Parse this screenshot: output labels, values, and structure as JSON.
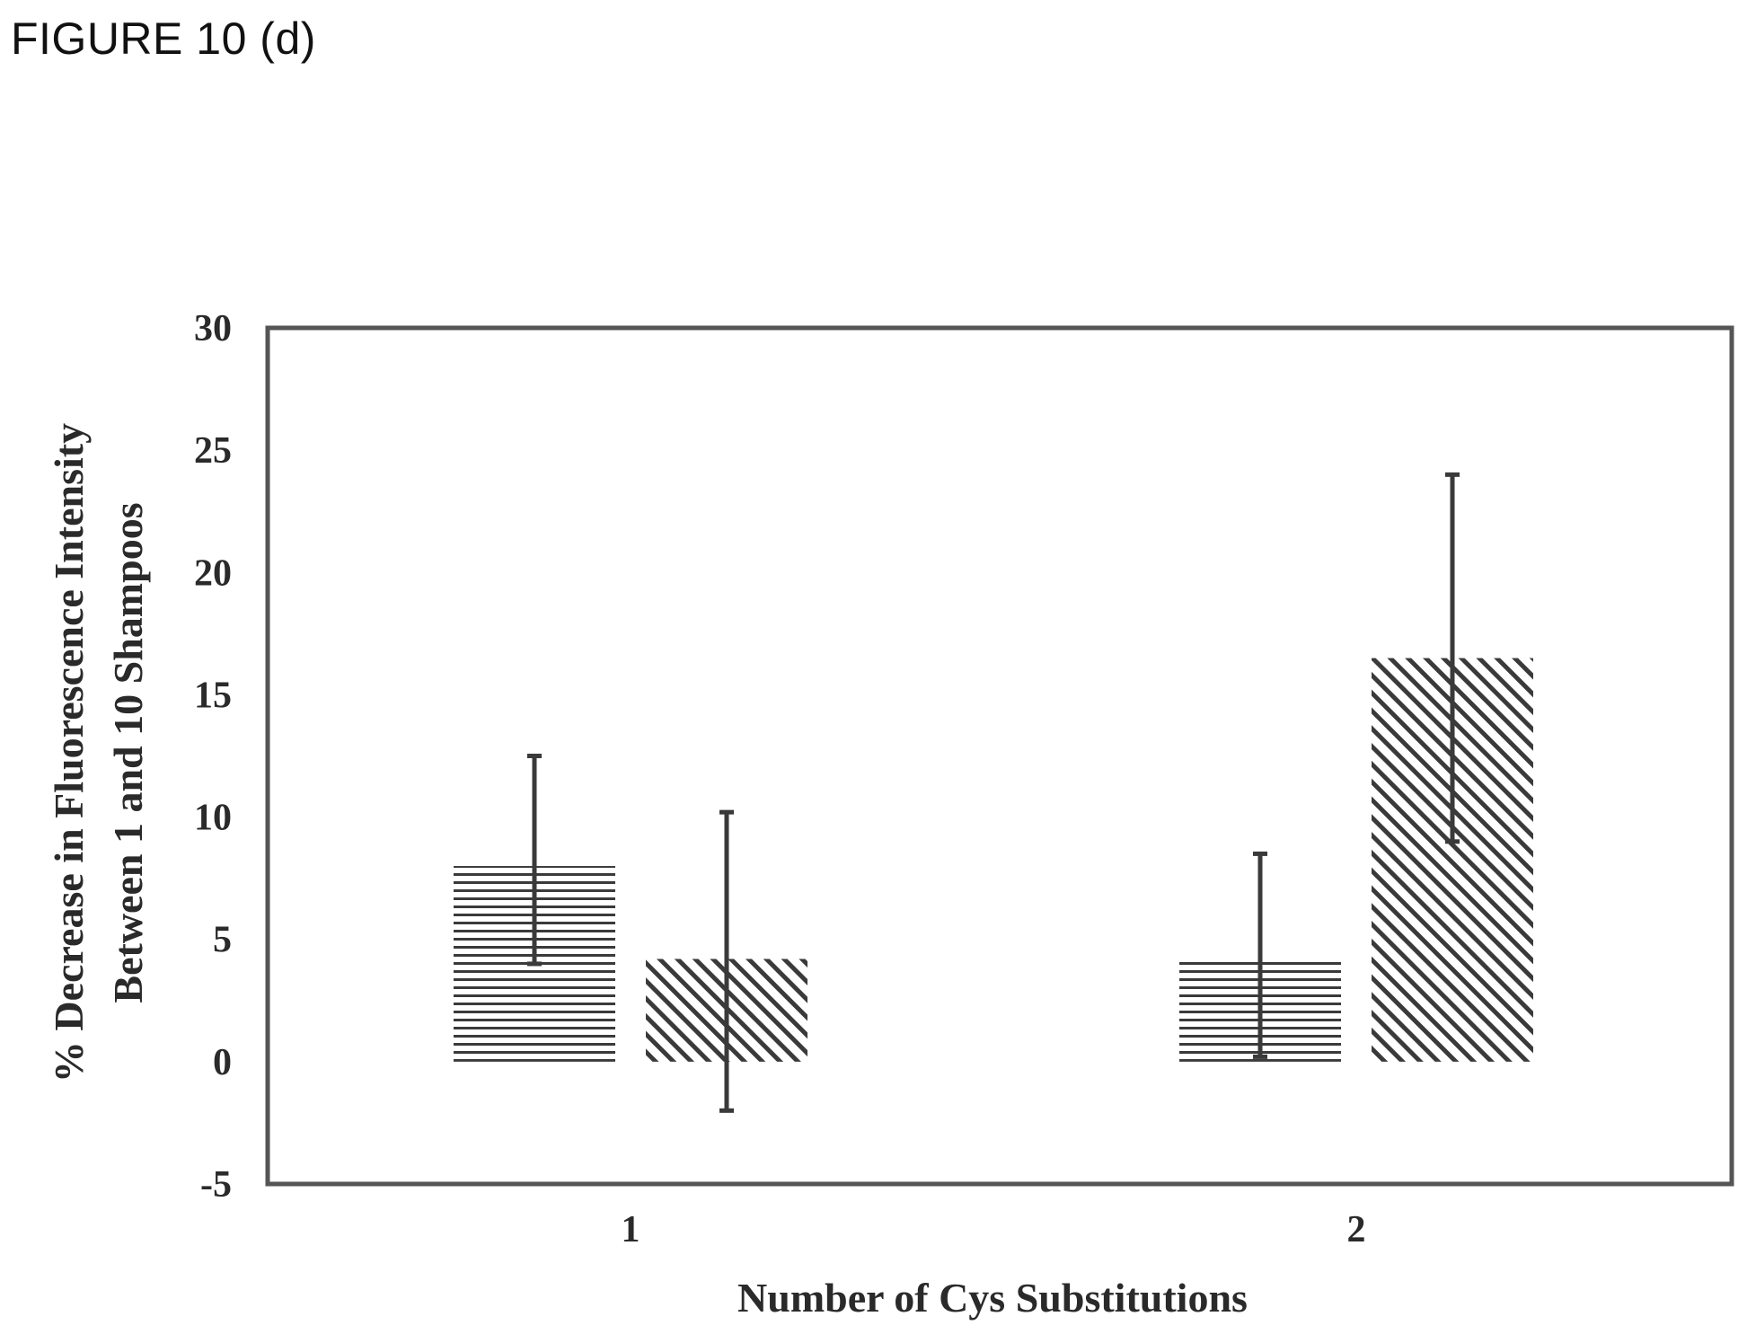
{
  "figure_label": "FIGURE 10 (d)",
  "chart_data": {
    "type": "bar",
    "categories": [
      "1",
      "2"
    ],
    "series": [
      {
        "pattern": "horizontal-stripes",
        "values": [
          8.0,
          4.2
        ],
        "error_low": [
          4.0,
          0.2
        ],
        "error_high": [
          12.5,
          8.5
        ]
      },
      {
        "pattern": "diagonal-stripes",
        "values": [
          4.2,
          16.5
        ],
        "error_low": [
          -2.0,
          9.0
        ],
        "error_high": [
          10.2,
          24.0
        ]
      }
    ],
    "ylim": [
      -5,
      30
    ],
    "yticks": [
      "30",
      "25",
      "20",
      "15",
      "10",
      "5",
      "0",
      "-5"
    ],
    "ylabel_line1": "% Decrease in Fluorescence Intensity",
    "ylabel_line2": "Between 1 and 10 Shampoos",
    "xlabel": "Number of Cys Substitutions",
    "grid": false,
    "legend": "none",
    "colors": {
      "ink": "#3a3a3a",
      "frame": "#555555",
      "background": "#ffffff"
    }
  }
}
